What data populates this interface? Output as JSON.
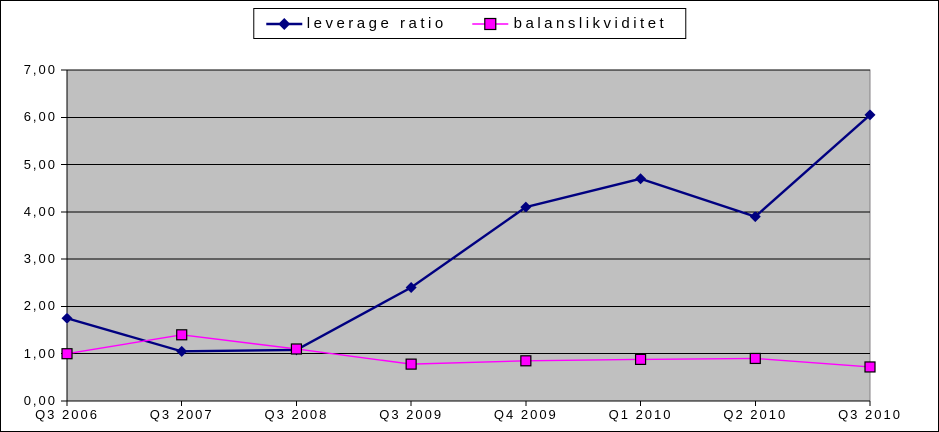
{
  "chart_data": {
    "type": "line",
    "title": "",
    "xlabel": "",
    "ylabel": "",
    "categories": [
      "Q3 2006",
      "Q3 2007",
      "Q3 2008",
      "Q3 2009",
      "Q4 2009",
      "Q1 2010",
      "Q2 2010",
      "Q3 2010"
    ],
    "series": [
      {
        "name": "leverage ratio",
        "color": "#000080",
        "marker": "diamond",
        "line_width": 2.4,
        "values": [
          1.75,
          1.05,
          1.08,
          2.4,
          4.1,
          4.7,
          3.9,
          6.05
        ]
      },
      {
        "name": "balanslikviditet",
        "color": "#FF00FF",
        "marker": "square",
        "marker_border": "#000000",
        "line_width": 1.4,
        "values": [
          1.0,
          1.4,
          1.1,
          0.78,
          0.85,
          0.88,
          0.9,
          0.72
        ]
      }
    ],
    "ylim": [
      0,
      7
    ],
    "ytick_step": 1,
    "ytick_labels": [
      "0,00",
      "1,00",
      "2,00",
      "3,00",
      "4,00",
      "5,00",
      "6,00",
      "7,00"
    ],
    "grid": true,
    "gridline_color": "#000000",
    "plot_bg": "#C0C0C0",
    "plot_border_color": "#848284",
    "axis_color": "#000000",
    "legend_position": "top-center",
    "legend_border_color": "#000000"
  }
}
